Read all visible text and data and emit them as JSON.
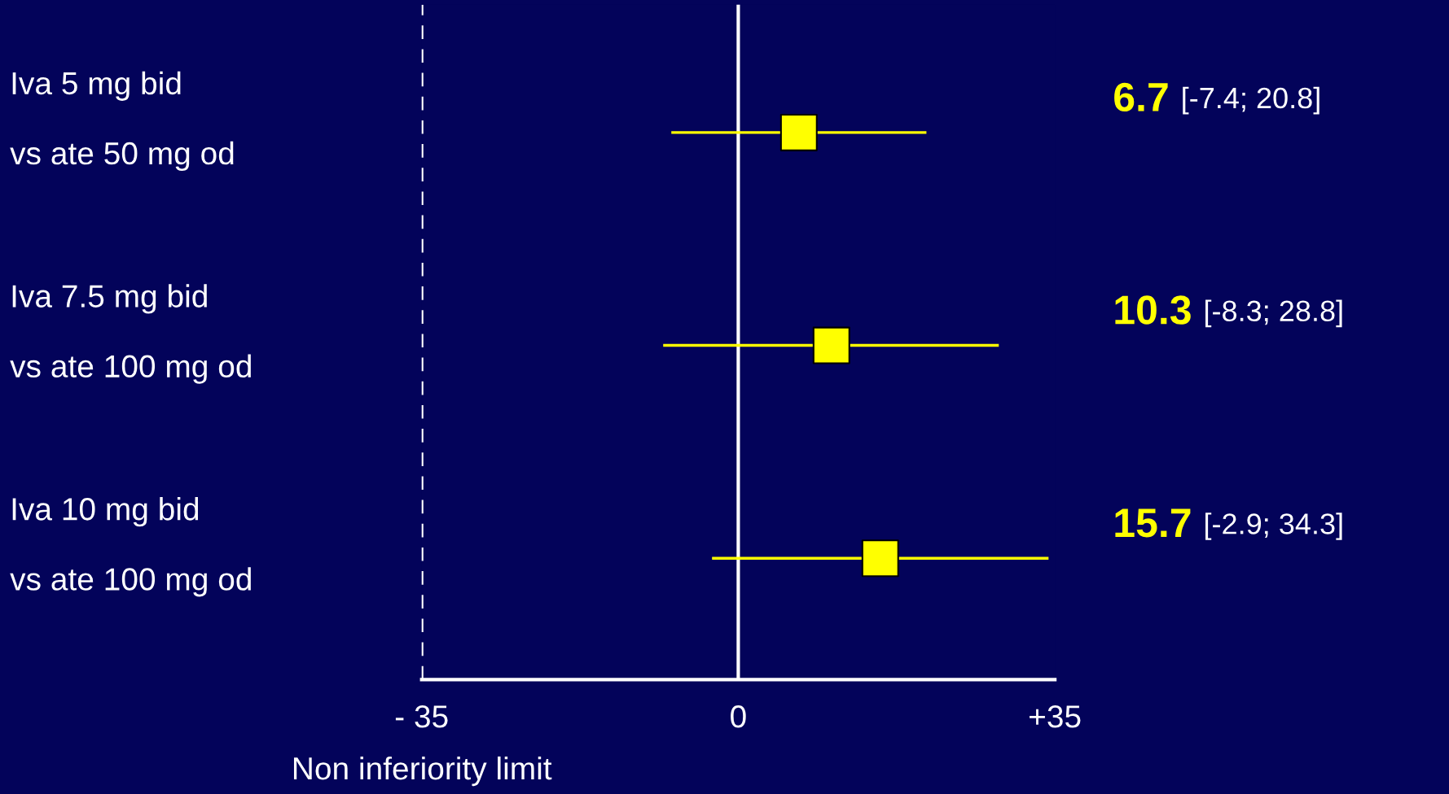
{
  "chart_data": {
    "type": "scatter",
    "orientation": "horizontal",
    "categories": [
      "Iva 5 mg bid\nvs ate 50 mg od",
      "Iva 7.5 mg bid\nvs ate 100 mg od",
      "Iva 10 mg bid\nvs ate 100 mg od"
    ],
    "values": [
      6.7,
      10.3,
      15.7
    ],
    "errors": [
      [
        -7.4,
        20.8
      ],
      [
        -8.3,
        28.8
      ],
      [
        -2.9,
        34.3
      ]
    ],
    "annotations": [
      "6.7 [-7.4; 20.8]",
      "10.3 [-8.3; 28.8]",
      "15.7 [-2.9; 34.3]"
    ],
    "color": "#ffff00",
    "marker": "square",
    "xlim": [
      -35,
      35
    ],
    "xticks": [
      {
        "value": -35,
        "label": "- 35"
      },
      0,
      {
        "value": 35,
        "label": "+35"
      }
    ],
    "tick_labels": "x",
    "ref_lines": [
      {
        "axis": "x",
        "value": -35,
        "label": "Non inferiority limit",
        "color": "#ffffff",
        "line_style": "dashed"
      },
      {
        "axis": "x",
        "value": 0,
        "color": "#ffffff",
        "line_style": "solid"
      }
    ],
    "grid": false,
    "legend": false
  }
}
